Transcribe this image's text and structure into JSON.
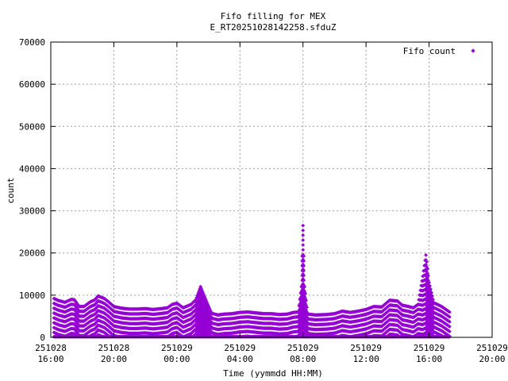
{
  "chart_data": {
    "type": "scatter",
    "title": "Fifo filling for MEX",
    "subtitle": "E_RT20251028142258.sfduZ",
    "xlabel": "Time (yymmdd HH:MM)",
    "ylabel": "count",
    "x_unit": "hours since 251028 16:00",
    "xlim": [
      0,
      28
    ],
    "ylim": [
      0,
      70000
    ],
    "grid": true,
    "legend_position": "top-right",
    "yticks": [
      0,
      10000,
      20000,
      30000,
      40000,
      50000,
      60000,
      70000
    ],
    "xticks": [
      {
        "value": 0,
        "line1": "251028",
        "line2": "16:00"
      },
      {
        "value": 4,
        "line1": "251028",
        "line2": "20:00"
      },
      {
        "value": 8,
        "line1": "251029",
        "line2": "00:00"
      },
      {
        "value": 12,
        "line1": "251029",
        "line2": "04:00"
      },
      {
        "value": 16,
        "line1": "251029",
        "line2": "08:00"
      },
      {
        "value": 20,
        "line1": "251029",
        "line2": "12:00"
      },
      {
        "value": 24,
        "line1": "251029",
        "line2": "16:00"
      },
      {
        "value": 28,
        "line1": "251029",
        "line2": "20:00"
      }
    ],
    "series": [
      {
        "name": "Fifo count",
        "color": "#9400d3",
        "marker": "diamond",
        "x_range": [
          0.2,
          25.3
        ],
        "envelope": [
          [
            0.2,
            9200
          ],
          [
            0.5,
            8700
          ],
          [
            0.9,
            8300
          ],
          [
            1.3,
            9000
          ],
          [
            1.5,
            8900
          ],
          [
            1.8,
            7300
          ],
          [
            2.1,
            7300
          ],
          [
            2.5,
            8400
          ],
          [
            2.8,
            8900
          ],
          [
            3.0,
            9800
          ],
          [
            3.4,
            9200
          ],
          [
            3.7,
            8300
          ],
          [
            4.0,
            7300
          ],
          [
            4.5,
            6900
          ],
          [
            5.0,
            6700
          ],
          [
            5.5,
            6700
          ],
          [
            6.0,
            6800
          ],
          [
            6.5,
            6600
          ],
          [
            7.0,
            6800
          ],
          [
            7.4,
            7000
          ],
          [
            7.7,
            7800
          ],
          [
            8.0,
            8100
          ],
          [
            8.4,
            7000
          ],
          [
            8.9,
            7800
          ],
          [
            9.2,
            8900
          ],
          [
            9.5,
            12000
          ],
          [
            9.9,
            8300
          ],
          [
            10.2,
            5700
          ],
          [
            10.6,
            5300
          ],
          [
            11.0,
            5500
          ],
          [
            11.5,
            5600
          ],
          [
            12.0,
            5900
          ],
          [
            12.5,
            6000
          ],
          [
            13.0,
            5800
          ],
          [
            13.5,
            5600
          ],
          [
            14.0,
            5600
          ],
          [
            14.5,
            5400
          ],
          [
            15.0,
            5500
          ],
          [
            15.4,
            5900
          ],
          [
            15.7,
            6000
          ],
          [
            15.9,
            12000
          ],
          [
            16.0,
            26500
          ],
          [
            16.1,
            12000
          ],
          [
            16.3,
            5500
          ],
          [
            16.8,
            5300
          ],
          [
            17.5,
            5400
          ],
          [
            18.0,
            5600
          ],
          [
            18.5,
            6200
          ],
          [
            19.0,
            5900
          ],
          [
            19.5,
            6200
          ],
          [
            20.0,
            6600
          ],
          [
            20.5,
            7300
          ],
          [
            21.0,
            7200
          ],
          [
            21.5,
            8800
          ],
          [
            22.0,
            8600
          ],
          [
            22.3,
            7600
          ],
          [
            22.7,
            7300
          ],
          [
            23.0,
            7000
          ],
          [
            23.3,
            7800
          ],
          [
            23.6,
            14500
          ],
          [
            23.8,
            19500
          ],
          [
            24.0,
            13000
          ],
          [
            24.3,
            8200
          ],
          [
            24.8,
            7300
          ],
          [
            25.3,
            6000
          ]
        ]
      }
    ]
  }
}
